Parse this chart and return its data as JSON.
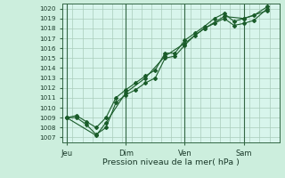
{
  "xlabel": "Pression niveau de la mer( hPa )",
  "background_color": "#cceedd",
  "plot_bg_color": "#d8f5ec",
  "grid_color": "#aaccbb",
  "line_color": "#1a5c2a",
  "vline_color": "#336644",
  "ylim": [
    1006.5,
    1020.5
  ],
  "yticks": [
    1007,
    1008,
    1009,
    1010,
    1011,
    1012,
    1013,
    1014,
    1015,
    1016,
    1017,
    1018,
    1019,
    1020
  ],
  "xtick_labels": [
    "Jeu",
    "Dim",
    "Ven",
    "Sam"
  ],
  "xtick_positions": [
    0,
    3.0,
    6.0,
    9.0
  ],
  "xlim": [
    -0.2,
    10.8
  ],
  "vline_positions": [
    0,
    3.0,
    6.0,
    9.0
  ],
  "series1_x": [
    0,
    0.5,
    1.0,
    1.5,
    2.0,
    2.5,
    3.0,
    3.5,
    4.0,
    4.5,
    5.0,
    5.5,
    6.0,
    6.5,
    7.0,
    7.5,
    8.0,
    8.5,
    9.0,
    9.5,
    10.2
  ],
  "series1_y": [
    1009.0,
    1009.0,
    1008.3,
    1007.3,
    1008.0,
    1010.5,
    1011.3,
    1011.8,
    1012.5,
    1013.0,
    1015.0,
    1015.2,
    1016.3,
    1017.3,
    1018.0,
    1018.5,
    1019.0,
    1018.3,
    1018.5,
    1018.8,
    1020.0
  ],
  "series2_x": [
    0,
    0.5,
    1.0,
    1.5,
    2.0,
    2.5,
    3.0,
    3.5,
    4.0,
    4.5,
    5.0,
    5.5,
    6.0,
    6.5,
    7.0,
    7.5,
    8.0,
    8.5,
    9.0,
    9.5,
    10.2
  ],
  "series2_y": [
    1009.0,
    1009.2,
    1008.6,
    1008.0,
    1009.0,
    1011.0,
    1011.8,
    1012.5,
    1013.2,
    1013.8,
    1015.5,
    1015.5,
    1016.8,
    1017.5,
    1018.2,
    1019.0,
    1019.5,
    1018.7,
    1019.0,
    1019.3,
    1020.2
  ],
  "series3_x": [
    0.0,
    1.5,
    2.0,
    3.0,
    4.0,
    5.0,
    6.0,
    7.0,
    8.0,
    9.0,
    10.2
  ],
  "series3_y": [
    1009.0,
    1007.2,
    1008.5,
    1011.5,
    1013.0,
    1015.2,
    1016.5,
    1018.0,
    1019.2,
    1019.0,
    1019.8
  ]
}
